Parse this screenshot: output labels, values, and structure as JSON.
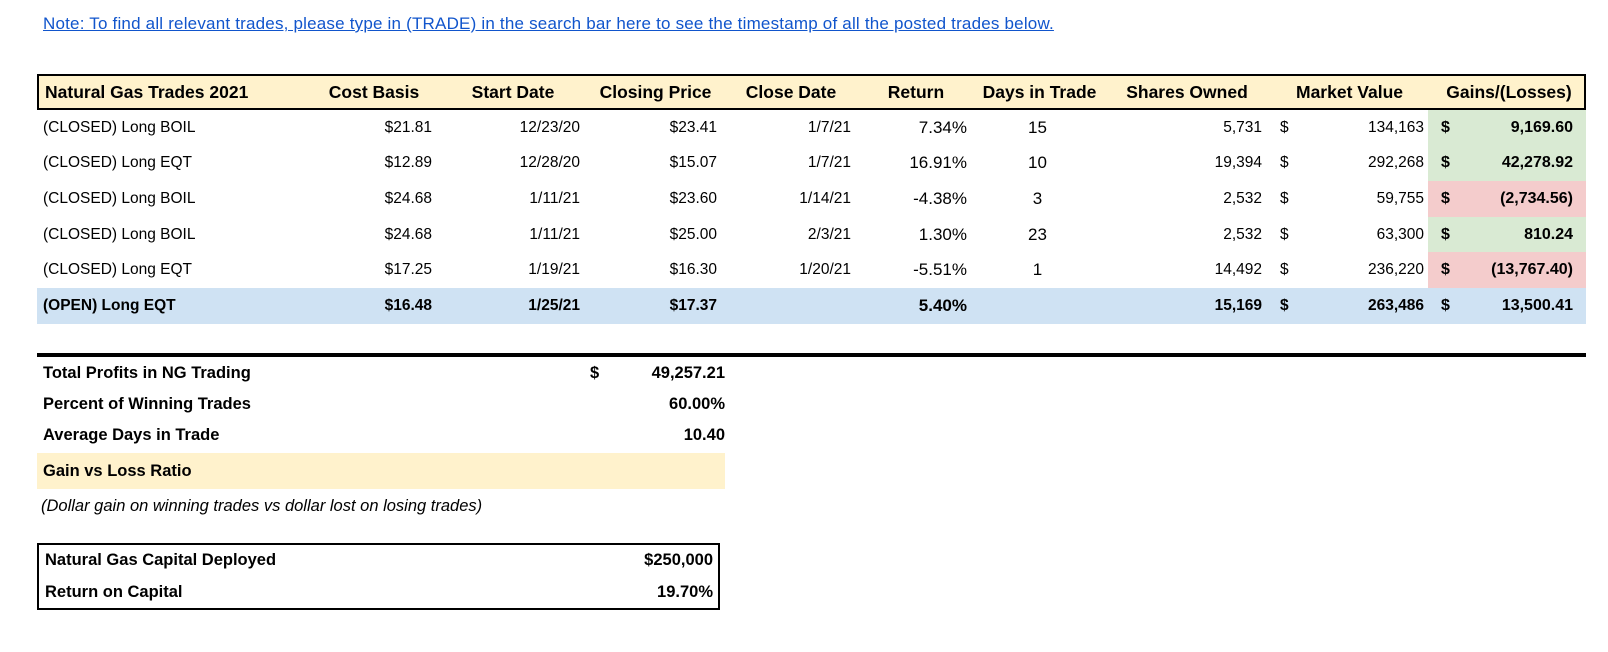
{
  "colors": {
    "header_bg": "#fff2cc",
    "gain_bg": "#d9ead3",
    "loss_bg": "#f4cccc",
    "open_row_bg": "#cfe2f3",
    "link": "#1155cc"
  },
  "note": {
    "text": "Note: To find all relevant trades, please type in (TRADE) in the search bar here to see the timestamp of all the posted trades below."
  },
  "table": {
    "headers": [
      "Natural Gas Trades 2021",
      "Cost Basis",
      "Start Date",
      "Closing Price",
      "Close Date",
      "Return",
      "Days in Trade",
      "Shares Owned",
      "Market Value",
      "Gains/(Losses)"
    ],
    "rows": [
      {
        "name": "(CLOSED) Long BOIL",
        "cost_basis": "$21.81",
        "start_date": "12/23/20",
        "closing_price": "$23.41",
        "close_date": "1/7/21",
        "return_pct": "7.34%",
        "days_in_trade": "15",
        "shares_owned": "5,731",
        "market_value_currency": "$",
        "market_value": "134,163",
        "gains_currency": "$",
        "gains": "9,169.60",
        "gains_type": "gain",
        "status": "closed"
      },
      {
        "name": "(CLOSED) Long EQT",
        "cost_basis": "$12.89",
        "start_date": "12/28/20",
        "closing_price": "$15.07",
        "close_date": "1/7/21",
        "return_pct": "16.91%",
        "days_in_trade": "10",
        "shares_owned": "19,394",
        "market_value_currency": "$",
        "market_value": "292,268",
        "gains_currency": "$",
        "gains": "42,278.92",
        "gains_type": "gain",
        "status": "closed"
      },
      {
        "name": "(CLOSED) Long BOIL",
        "cost_basis": "$24.68",
        "start_date": "1/11/21",
        "closing_price": "$23.60",
        "close_date": "1/14/21",
        "return_pct": "-4.38%",
        "days_in_trade": "3",
        "shares_owned": "2,532",
        "market_value_currency": "$",
        "market_value": "59,755",
        "gains_currency": "$",
        "gains": "(2,734.56)",
        "gains_type": "loss",
        "status": "closed"
      },
      {
        "name": "(CLOSED) Long BOIL",
        "cost_basis": "$24.68",
        "start_date": "1/11/21",
        "closing_price": "$25.00",
        "close_date": "2/3/21",
        "return_pct": "1.30%",
        "days_in_trade": "23",
        "shares_owned": "2,532",
        "market_value_currency": "$",
        "market_value": "63,300",
        "gains_currency": "$",
        "gains": "810.24",
        "gains_type": "gain",
        "status": "closed"
      },
      {
        "name": "(CLOSED) Long EQT",
        "cost_basis": "$17.25",
        "start_date": "1/19/21",
        "closing_price": "$16.30",
        "close_date": "1/20/21",
        "return_pct": "-5.51%",
        "days_in_trade": "1",
        "shares_owned": "14,492",
        "market_value_currency": "$",
        "market_value": "236,220",
        "gains_currency": "$",
        "gains": "(13,767.40)",
        "gains_type": "loss",
        "status": "closed"
      },
      {
        "name": "(OPEN) Long EQT",
        "cost_basis": "$16.48",
        "start_date": "1/25/21",
        "closing_price": "$17.37",
        "close_date": "",
        "return_pct": "5.40%",
        "days_in_trade": "",
        "shares_owned": "15,169",
        "market_value_currency": "$",
        "market_value": "263,486",
        "gains_currency": "$",
        "gains": "13,500.41",
        "gains_type": "open",
        "status": "open"
      }
    ]
  },
  "summary": {
    "rows": [
      {
        "label": "Total Profits in NG Trading",
        "currency": "$",
        "value": "49,257.21",
        "highlighted": false
      },
      {
        "label": "Percent of Winning Trades",
        "currency": "",
        "value": "60.00%",
        "highlighted": false
      },
      {
        "label": "Average Days in Trade",
        "currency": "",
        "value": "10.40",
        "highlighted": false
      },
      {
        "label": "Gain vs Loss Ratio",
        "currency": "",
        "value": "",
        "highlighted": true
      }
    ],
    "footnote": "(Dollar gain on winning trades vs dollar lost on losing trades)"
  },
  "capital_box": {
    "rows": [
      {
        "label": "Natural Gas Capital Deployed",
        "value": "$250,000"
      },
      {
        "label": "Return on Capital",
        "value": "19.70%"
      }
    ]
  }
}
